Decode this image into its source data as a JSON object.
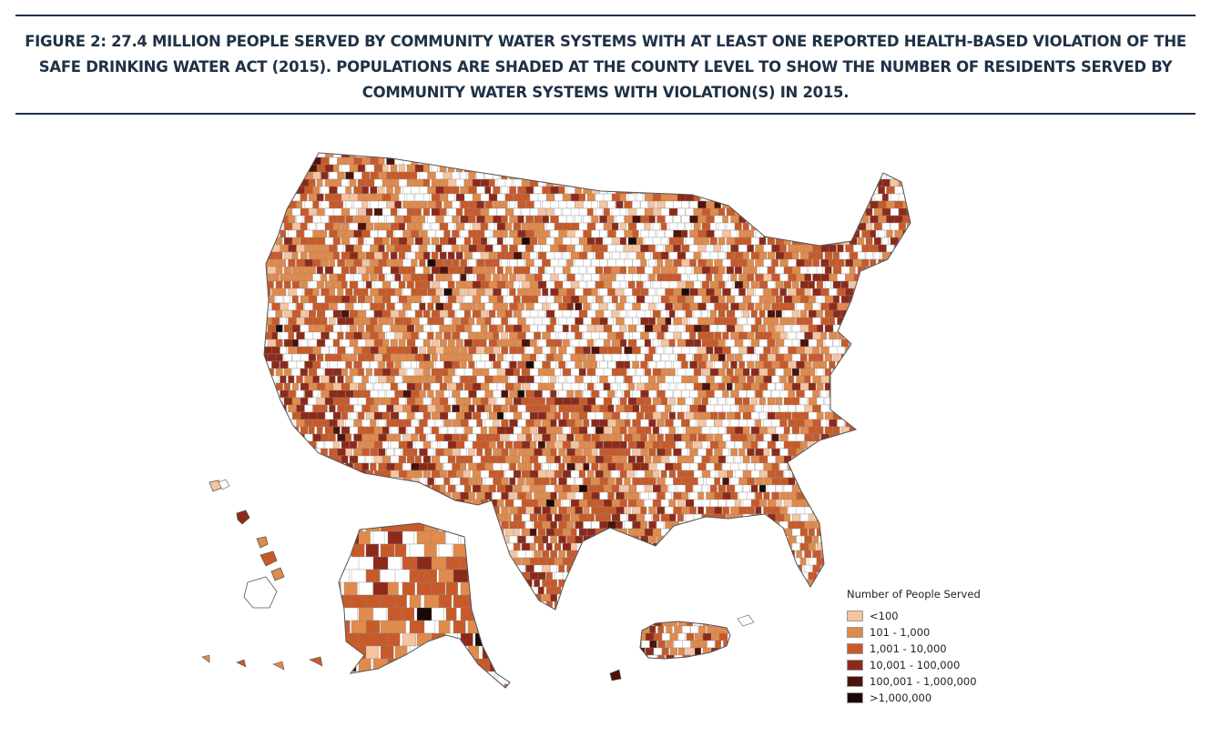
{
  "figure": {
    "title": "FIGURE 2: 27.4 MILLION PEOPLE SERVED BY COMMUNITY WATER SYSTEMS WITH AT LEAST ONE REPORTED HEALTH-BASED VIOLATION OF THE SAFE DRINKING WATER ACT (2015). POPULATIONS ARE SHADED AT THE COUNTY LEVEL TO SHOW THE NUMBER OF RESIDENTS SERVED BY COMMUNITY WATER SYSTEMS WITH VIOLATION(S) IN 2015."
  },
  "legend": {
    "title": "Number of People Served",
    "items": [
      {
        "label": "<100",
        "color": "#f6c4a0"
      },
      {
        "label": "101 - 1,000",
        "color": "#e08a4c"
      },
      {
        "label": "1,001 - 10,000",
        "color": "#c85a2a"
      },
      {
        "label": "10,001 - 100,000",
        "color": "#8c2a1a"
      },
      {
        "label": "100,001 - 1,000,000",
        "color": "#4d1208"
      },
      {
        "label": ">1,000,000",
        "color": "#1a0a05"
      }
    ]
  },
  "colors": {
    "no_data": "#ffffff",
    "border": "#8a8a8a",
    "rule": "#1f3146"
  }
}
